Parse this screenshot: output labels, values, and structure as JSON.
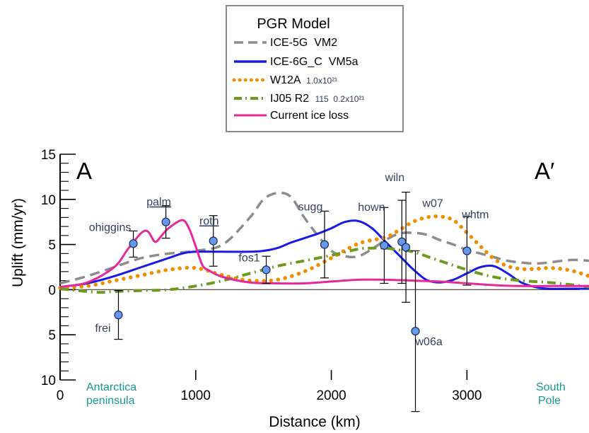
{
  "chart_data": {
    "type": "line",
    "xlabel": "Distance (km)",
    "ylabel": "Uplift (mm/yr)",
    "xlim": [
      0,
      3900
    ],
    "ylim": [
      -10,
      15
    ],
    "x_ticks": [
      {
        "value": 0,
        "label": "0"
      },
      {
        "value": 1000,
        "label": "1000"
      },
      {
        "value": 2000,
        "label": "2000"
      },
      {
        "value": 3000,
        "label": "3000"
      }
    ],
    "y_ticks": [
      {
        "value": 15,
        "label": "15"
      },
      {
        "value": 10,
        "label": "10"
      },
      {
        "value": 5,
        "label": "5"
      },
      {
        "value": 0,
        "label": "0"
      },
      {
        "value": -5,
        "label": "5"
      },
      {
        "value": -10,
        "label": "10"
      }
    ],
    "start_label": "A",
    "end_label": "A′",
    "region_labels": {
      "left": [
        "Antarctica",
        "peninsula"
      ],
      "right": [
        "South",
        "Pole"
      ]
    },
    "legend": {
      "title": "PGR Model",
      "position": "top-center",
      "entries": [
        {
          "label": "ICE-5G  VM2",
          "sub": ""
        },
        {
          "label": "ICE-6G_C  VM5a",
          "sub": ""
        },
        {
          "label": "W12A",
          "sub": "1.0x10²¹"
        },
        {
          "label": "IJ05 R2",
          "sub": "115  0.2x10²¹"
        },
        {
          "label": "Current ice loss",
          "sub": ""
        }
      ]
    },
    "series": [
      {
        "name": "ICE-5G  VM2",
        "color": "#8c8c8c",
        "style": "dashed",
        "x": [
          0,
          200,
          400,
          600,
          800,
          1000,
          1200,
          1400,
          1500,
          1600,
          1700,
          1800,
          1900,
          2000,
          2100,
          2200,
          2300,
          2400,
          2500,
          2600,
          2700,
          2800,
          2900,
          3000,
          3100,
          3200,
          3300,
          3400,
          3500,
          3600,
          3700,
          3800,
          3900
        ],
        "y": [
          0.7,
          1.5,
          2.5,
          3.5,
          4.0,
          4.3,
          5.0,
          8.0,
          10.0,
          10.7,
          10.3,
          8.0,
          6.0,
          4.3,
          3.7,
          3.7,
          4.5,
          5.5,
          6.2,
          6.3,
          6.1,
          5.5,
          5.0,
          4.4,
          4.0,
          3.6,
          3.2,
          3.0,
          2.9,
          3.0,
          3.2,
          3.3,
          3.2
        ]
      },
      {
        "name": "ICE-6G_C  VM5a",
        "color": "#1a1ae6",
        "style": "solid",
        "x": [
          0,
          200,
          400,
          600,
          800,
          900,
          1000,
          1200,
          1400,
          1500,
          1600,
          1700,
          1800,
          1900,
          2000,
          2100,
          2200,
          2300,
          2400,
          2500,
          2600,
          2700,
          2800,
          2900,
          3000,
          3100,
          3200,
          3300,
          3400,
          3500,
          3600,
          3800,
          3900
        ],
        "y": [
          0.3,
          0.7,
          1.5,
          2.5,
          3.5,
          4.0,
          4.2,
          4.2,
          4.2,
          4.3,
          4.6,
          5.2,
          5.7,
          6.2,
          6.8,
          7.5,
          7.6,
          6.8,
          5.3,
          3.8,
          2.3,
          1.1,
          0.8,
          1.1,
          1.8,
          2.5,
          2.6,
          1.8,
          0.8,
          0.3,
          0.1,
          0.1,
          0.1
        ]
      },
      {
        "name": "W12A",
        "color": "#f28c00",
        "style": "dotted",
        "x": [
          0,
          200,
          400,
          600,
          800,
          1000,
          1200,
          1400,
          1600,
          1800,
          2000,
          2200,
          2400,
          2500,
          2600,
          2700,
          2800,
          2900,
          3000,
          3100,
          3200,
          3300,
          3400,
          3500,
          3600,
          3700,
          3800,
          3900
        ],
        "y": [
          0.2,
          0.4,
          1.0,
          1.6,
          2.2,
          2.4,
          1.6,
          1.0,
          1.1,
          2.0,
          3.5,
          5.1,
          5.8,
          6.6,
          7.5,
          8.0,
          8.1,
          7.7,
          6.3,
          4.8,
          3.4,
          2.6,
          2.3,
          2.3,
          2.4,
          2.3,
          2.0,
          1.5
        ]
      },
      {
        "name": "IJ05 R2",
        "color": "#6b9a1f",
        "style": "dashdot",
        "x": [
          0,
          200,
          300,
          400,
          600,
          800,
          1000,
          1200,
          1400,
          1600,
          1800,
          2000,
          2200,
          2300,
          2400,
          2500,
          2600,
          2800,
          3000,
          3200,
          3400,
          3600,
          3800,
          3900
        ],
        "y": [
          0.1,
          -0.2,
          -0.3,
          -0.2,
          -0.1,
          0.0,
          0.4,
          1.0,
          1.8,
          2.6,
          3.2,
          3.8,
          4.5,
          4.6,
          4.6,
          4.4,
          4.2,
          3.2,
          2.2,
          1.4,
          1.0,
          0.8,
          0.5,
          0.3
        ]
      },
      {
        "name": "Current ice loss",
        "color": "#e6289a",
        "style": "solid",
        "x": [
          0,
          200,
          400,
          500,
          600,
          650,
          700,
          750,
          800,
          900,
          950,
          1000,
          1050,
          1100,
          1200,
          1400,
          1600,
          1800,
          2000,
          2200,
          2400,
          2600,
          2800,
          3000,
          3200,
          3400,
          3600,
          3800,
          3900
        ],
        "y": [
          0.3,
          0.8,
          2.5,
          4.5,
          6.3,
          6.4,
          5.3,
          6.0,
          6.8,
          7.7,
          6.8,
          4.8,
          2.7,
          2.1,
          1.4,
          0.8,
          0.7,
          0.7,
          0.9,
          1.1,
          1.1,
          1.0,
          0.9,
          0.7,
          0.5,
          0.4,
          0.4,
          0.4,
          0.4
        ]
      }
    ],
    "stations": [
      {
        "name": "ohiggins",
        "x": 540,
        "y": 5.1,
        "lo": 3.6,
        "hi": 6.5,
        "underline": false
      },
      {
        "name": "palm",
        "x": 780,
        "y": 7.5,
        "lo": 5.7,
        "hi": 9.3,
        "underline": true
      },
      {
        "name": "roth",
        "x": 1130,
        "y": 5.4,
        "lo": 2.6,
        "hi": 8.2,
        "underline": true
      },
      {
        "name": "frei",
        "x": 430,
        "y": -2.8,
        "lo": -5.5,
        "hi": -0.1,
        "underline": false
      },
      {
        "name": "fos1",
        "x": 1520,
        "y": 2.2,
        "lo": 0.7,
        "hi": 3.7,
        "underline": false
      },
      {
        "name": "sugg",
        "x": 1950,
        "y": 5.0,
        "lo": 1.3,
        "hi": 8.7,
        "underline": false
      },
      {
        "name": "hown",
        "x": 2390,
        "y": 4.9,
        "lo": 0.7,
        "hi": 9.1,
        "underline": false
      },
      {
        "name": "wiln",
        "x": 2520,
        "y": 5.3,
        "lo": 0.7,
        "hi": 9.9,
        "underline": false
      },
      {
        "name": "w07",
        "x": 2550,
        "y": 4.7,
        "lo": -1.4,
        "hi": 10.8,
        "underline": false
      },
      {
        "name": "w06a",
        "x": 2620,
        "y": -4.6,
        "lo": -13.5,
        "hi": 4.3,
        "underline": false
      },
      {
        "name": "whtm",
        "x": 3000,
        "y": 4.3,
        "lo": 0.5,
        "hi": 8.1,
        "underline": false
      }
    ]
  }
}
